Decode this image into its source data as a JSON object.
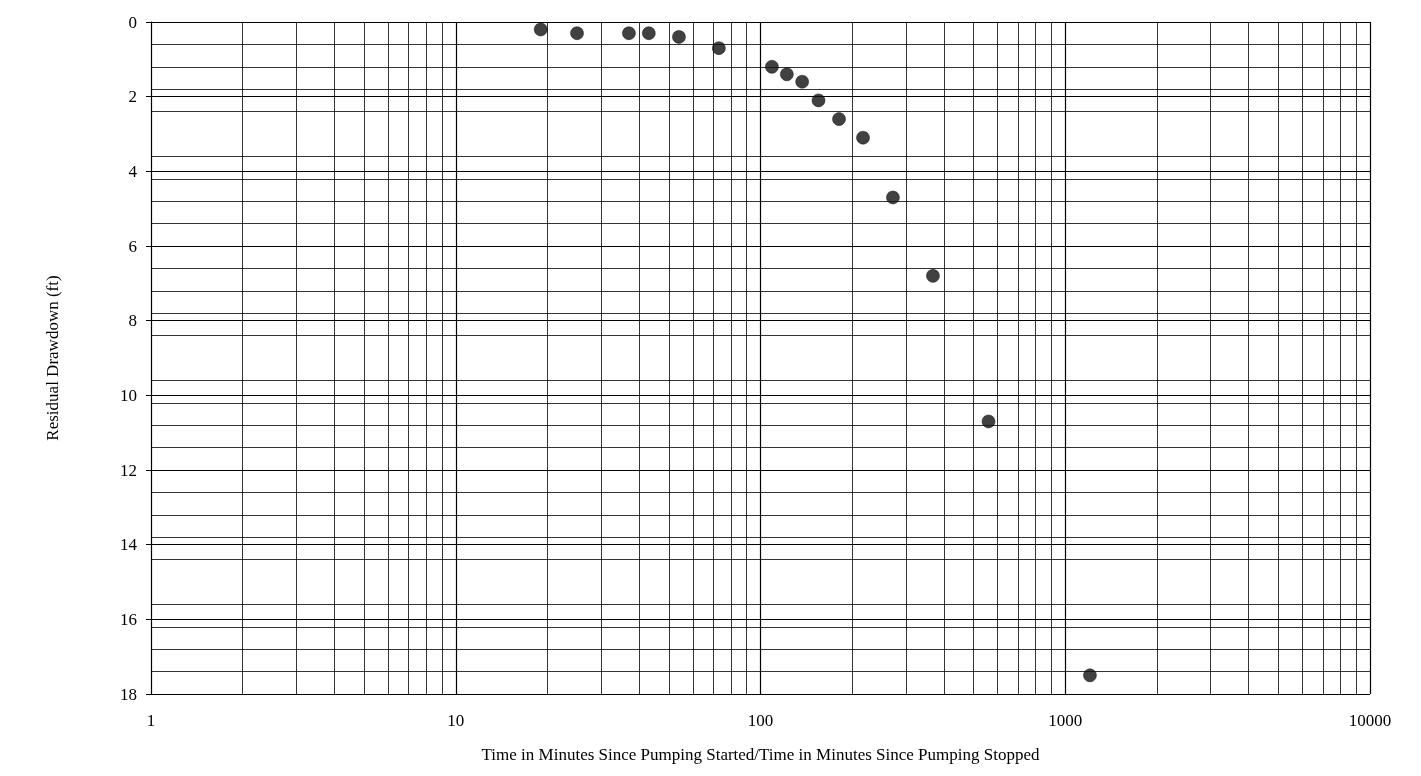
{
  "chart_data": {
    "type": "scatter",
    "xlabel": "Time in Minutes Since Pumping Started/Time in Minutes Since Pumping Stopped",
    "ylabel": "Residual Drawdown (ft)",
    "x": [
      19,
      25,
      37,
      43,
      54,
      73,
      109,
      122,
      137,
      155,
      181,
      217,
      272,
      368,
      560,
      1205
    ],
    "series": [
      {
        "color": "#111111",
        "values": [
          0.2,
          0.3,
          0.3,
          0.3,
          0.4,
          0.7,
          1.2,
          1.4,
          1.6,
          2.1,
          2.6,
          3.1,
          4.7,
          6.8,
          10.7,
          17.5
        ]
      }
    ],
    "xlim": [
      1,
      10000
    ],
    "xticks": [
      1,
      10,
      100,
      1000,
      10000
    ],
    "ylim": [
      18,
      0
    ],
    "yticks": [
      0,
      2,
      4,
      6,
      8,
      10,
      12,
      14,
      16,
      18
    ],
    "log": "x",
    "grid": true,
    "marker": "circle"
  }
}
